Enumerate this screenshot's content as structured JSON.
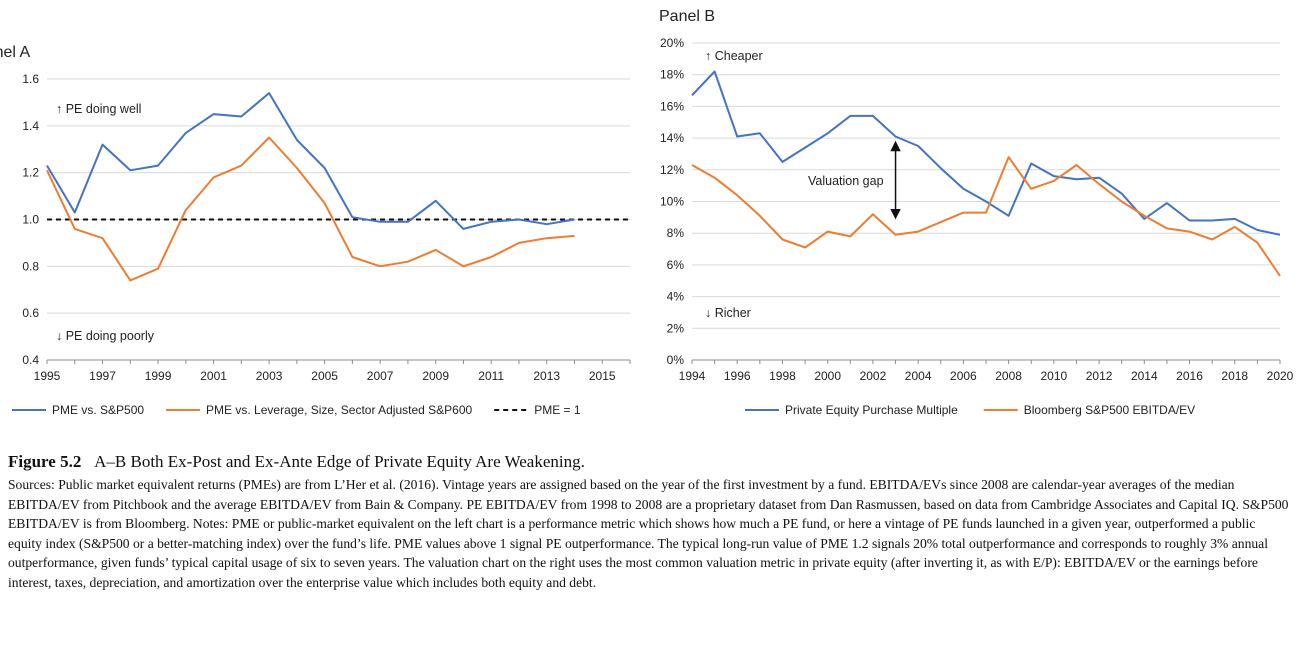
{
  "chart_data": [
    {
      "type": "line",
      "title": "Panel A",
      "x": [
        1995,
        1996,
        1997,
        1998,
        1999,
        2000,
        2001,
        2002,
        2003,
        2004,
        2005,
        2006,
        2007,
        2008,
        2009,
        2010,
        2011,
        2012,
        2013,
        2014
      ],
      "xlim": [
        1995,
        2016
      ],
      "xticks": [
        "1995",
        "1997",
        "1999",
        "2001",
        "2003",
        "2005",
        "2007",
        "2009",
        "2011",
        "2013",
        "2015"
      ],
      "ylim": [
        0.4,
        1.6
      ],
      "yticks": [
        "0.4",
        "0.6",
        "0.8",
        "1.0",
        "1.2",
        "1.4",
        "1.6"
      ],
      "grid": true,
      "legend_position": "bottom",
      "series": [
        {
          "name": "PME vs. S&P500",
          "color": "#4472c4",
          "values": [
            1.23,
            1.03,
            1.32,
            1.21,
            1.23,
            1.37,
            1.45,
            1.44,
            1.54,
            1.34,
            1.22,
            1.01,
            0.99,
            0.99,
            1.08,
            0.96,
            0.99,
            1.0,
            0.98,
            1.0
          ]
        },
        {
          "name": "PME vs. Leverage, Size, Sector Adjusted S&P600",
          "color": "#ed7d31",
          "values": [
            1.21,
            0.96,
            0.92,
            0.74,
            0.79,
            1.04,
            1.18,
            1.23,
            1.35,
            1.22,
            1.07,
            0.84,
            0.8,
            0.82,
            0.87,
            0.8,
            0.84,
            0.9,
            0.92,
            0.93
          ]
        }
      ],
      "reference_line": {
        "name": "PME = 1",
        "value": 1.0,
        "style": "dashed",
        "color": "#111111"
      },
      "annotations": [
        "↑ PE doing well",
        "↓ PE doing poorly"
      ]
    },
    {
      "type": "line",
      "title": "Panel B",
      "x": [
        1994,
        1995,
        1996,
        1997,
        1998,
        1999,
        2000,
        2001,
        2002,
        2003,
        2004,
        2005,
        2006,
        2007,
        2008,
        2009,
        2010,
        2011,
        2012,
        2013,
        2014,
        2015,
        2016,
        2017,
        2018,
        2019,
        2020
      ],
      "xlim": [
        1994,
        2020
      ],
      "xticks": [
        "1994",
        "1996",
        "1998",
        "2000",
        "2002",
        "2004",
        "2006",
        "2008",
        "2010",
        "2012",
        "2014",
        "2016",
        "2018",
        "2020"
      ],
      "ylim": [
        0,
        20
      ],
      "yticks": [
        "0%",
        "2%",
        "4%",
        "6%",
        "8%",
        "10%",
        "12%",
        "14%",
        "16%",
        "18%",
        "20%"
      ],
      "grid": true,
      "legend_position": "bottom",
      "series": [
        {
          "name": "Private Equity Purchase Multiple",
          "color": "#4472c4",
          "values": [
            16.7,
            18.2,
            14.1,
            14.3,
            12.5,
            13.4,
            14.3,
            15.4,
            15.4,
            14.1,
            13.5,
            12.1,
            10.8,
            10.0,
            9.1,
            12.4,
            11.6,
            11.4,
            11.5,
            10.5,
            8.9,
            9.9,
            8.8,
            8.8,
            8.9,
            8.2,
            7.9
          ]
        },
        {
          "name": "Bloomberg S&P500 EBITDA/EV",
          "color": "#ed7d31",
          "values": [
            12.3,
            11.5,
            10.4,
            9.1,
            7.6,
            7.1,
            8.1,
            7.8,
            9.2,
            7.9,
            8.1,
            8.7,
            9.3,
            9.3,
            12.8,
            10.8,
            11.3,
            12.3,
            11.1,
            10.0,
            9.1,
            8.3,
            8.1,
            7.6,
            8.4,
            7.4,
            5.3
          ]
        }
      ],
      "annotations": [
        "↑ Cheaper",
        "Valuation gap",
        "↓ Richer"
      ]
    }
  ],
  "caption": {
    "figure_number": "Figure 5.2",
    "figure_title": "A–B Both Ex-Post and Ex-Ante Edge of Private Equity Are Weakening.",
    "body": "Sources: Public market equivalent returns (PMEs) are from L’Her et al. (2016). Vintage years are assigned based on the year of the first investment by a fund. EBITDA/EVs since 2008 are calendar-year averages of the median EBITDA/EV from Pitchbook and the average EBITDA/EV from Bain & Company. PE EBITDA/EV from 1998 to 2008 are a proprietary dataset from Dan Rasmussen, based on data from Cambridge Associates and Capital IQ. S&P500 EBITDA/EV is from Bloomberg. Notes: PME or public-market equivalent on the left chart is a performance metric which shows how much a PE fund, or here a vintage of PE funds launched in a given year, outperformed a public equity index (S&P500 or a better-matching index) over the fund’s life. PME values above 1 signal PE outperformance. The typical long-run value of PME 1.2 signals 20% total outperformance and corresponds to roughly 3% annual outperformance, given funds’ typical capital usage of six to seven years. The valuation chart on the right uses the most common valuation metric in private equity (after inverting it, as with E/P): EBITDA/EV or the earnings before interest, taxes, depreciation, and amortization over the enterprise value which includes both equity and debt."
  }
}
